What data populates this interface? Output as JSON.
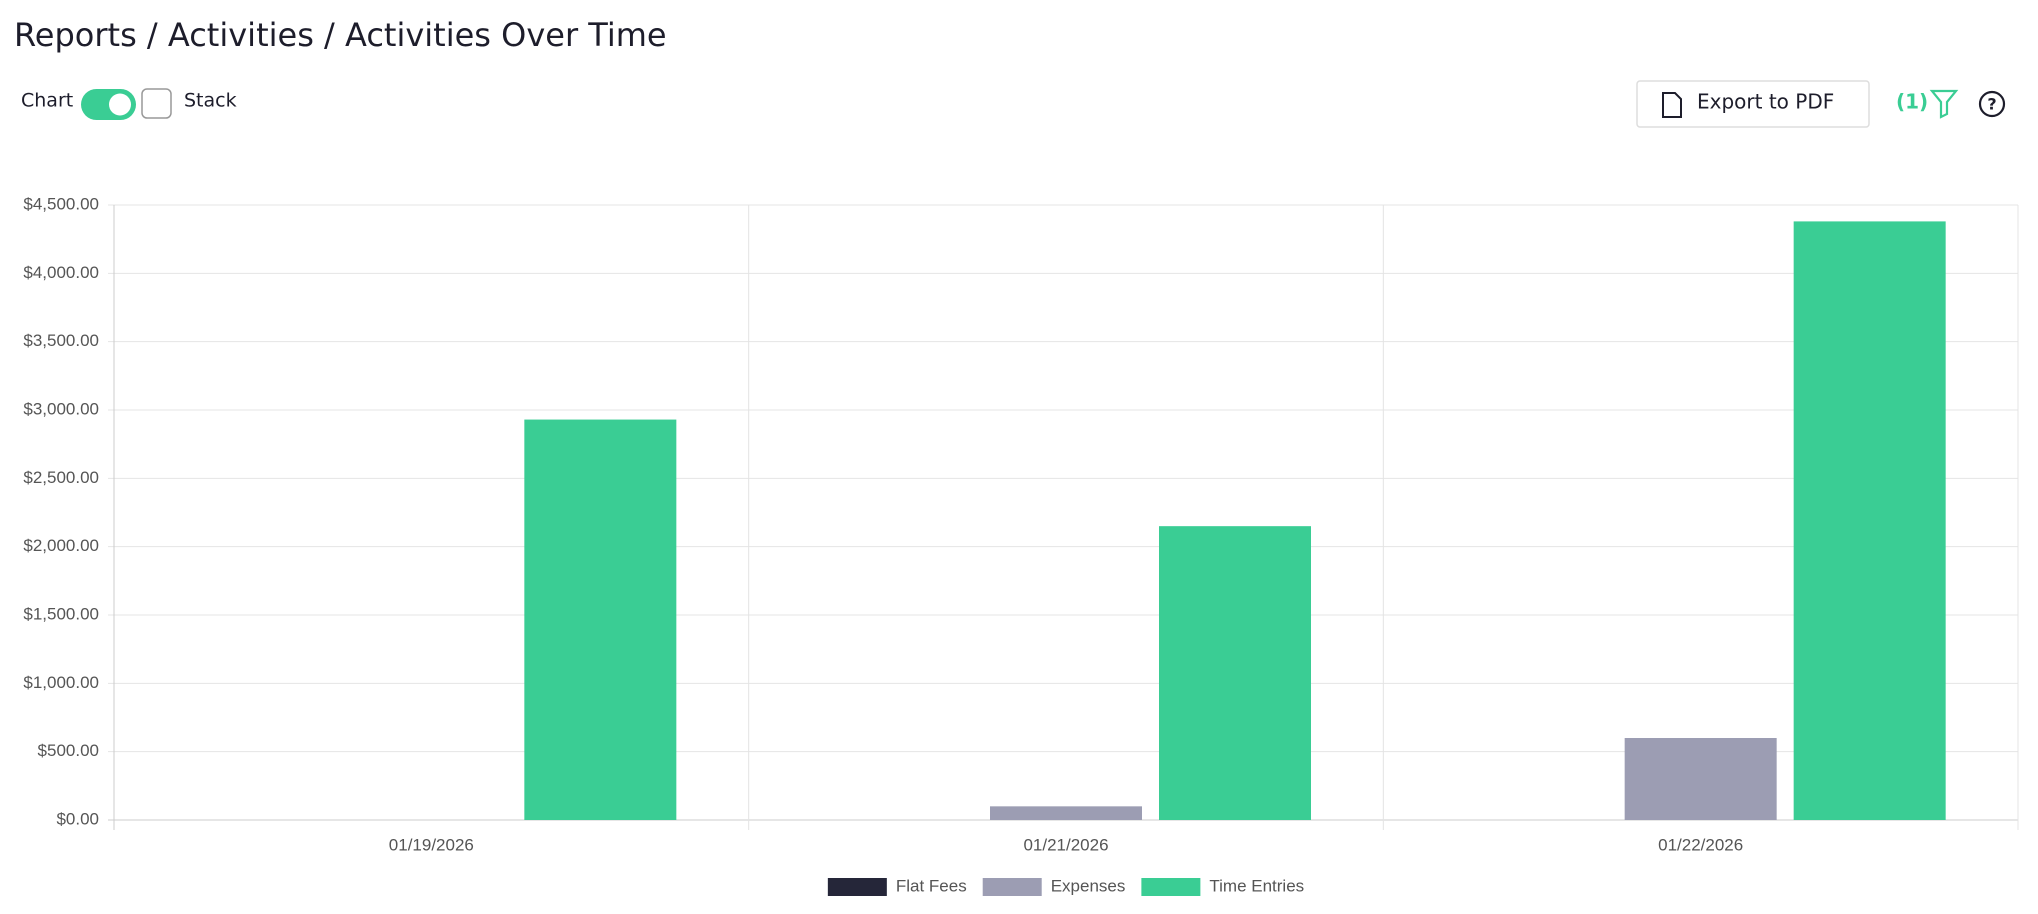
{
  "header": {
    "title": "Reports / Activities / Activities Over Time",
    "chart_label": "Chart",
    "stack_label": "Stack",
    "export_button": "Export to PDF",
    "filter_count": "(1)"
  },
  "chart_data": {
    "type": "bar",
    "categories": [
      "01/19/2026",
      "01/21/2026",
      "01/22/2026"
    ],
    "series": [
      {
        "name": "Flat Fees",
        "color": "#252639",
        "values": [
          0,
          0,
          0
        ]
      },
      {
        "name": "Expenses",
        "color": "#9c9db3",
        "values": [
          0,
          100,
          600
        ]
      },
      {
        "name": "Time Entries",
        "color": "#3acd94",
        "values": [
          2930,
          2150,
          4380
        ]
      }
    ],
    "ylim": [
      0,
      4500
    ],
    "yticks": [
      {
        "value": 0,
        "label": "$0.00"
      },
      {
        "value": 500,
        "label": "$500.00"
      },
      {
        "value": 1000,
        "label": "$1,000.00"
      },
      {
        "value": 1500,
        "label": "$1,500.00"
      },
      {
        "value": 2000,
        "label": "$2,000.00"
      },
      {
        "value": 2500,
        "label": "$2,500.00"
      },
      {
        "value": 3000,
        "label": "$3,000.00"
      },
      {
        "value": 3500,
        "label": "$3,500.00"
      },
      {
        "value": 4000,
        "label": "$4,000.00"
      },
      {
        "value": 4500,
        "label": "$4,500.00"
      }
    ],
    "grid": true,
    "legend": "bottom"
  }
}
